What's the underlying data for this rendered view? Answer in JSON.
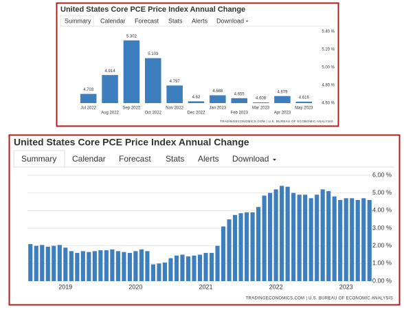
{
  "chart_data": [
    {
      "type": "bar",
      "title": "United States Core PCE Price Index Annual Change",
      "tabs": [
        "Summary",
        "Calendar",
        "Forecast",
        "Stats",
        "Alerts",
        "Download"
      ],
      "source": "TRADINGECONOMICS.COM | U.S. BUREAU OF ECONOMIC ANALYSIS",
      "categories": [
        "Jul 2022",
        "Aug 2022",
        "Sep 2022",
        "Oct 2022",
        "Nov 2022",
        "Dec 2022",
        "Jan 2023",
        "Feb 2023",
        "Mar 2023",
        "Apr 2023",
        "May 2023"
      ],
      "values": [
        4.703,
        4.914,
        5.302,
        5.103,
        4.797,
        4.62,
        4.688,
        4.655,
        4.608,
        4.679,
        4.616
      ],
      "color": "#3d7ebf",
      "ylim": [
        4.6,
        5.4
      ],
      "yticks": [
        {
          "value": 4.6,
          "label": "4.60 %"
        },
        {
          "value": 4.8,
          "label": "4.80 %"
        },
        {
          "value": 5.0,
          "label": "5.00 %"
        },
        {
          "value": 5.2,
          "label": "5.20 %"
        },
        {
          "value": 5.4,
          "label": "5.40 %"
        }
      ],
      "grid": false
    },
    {
      "type": "bar",
      "title": "United States Core PCE Price Index Annual Change",
      "tabs": [
        "Summary",
        "Calendar",
        "Forecast",
        "Stats",
        "Alerts",
        "Download"
      ],
      "source": "TRADINGECONOMICS.COM | U.S. BUREAU OF ECONOMIC ANALYSIS",
      "categories": [
        null,
        null,
        null,
        null,
        null,
        null,
        "2019",
        null,
        null,
        null,
        null,
        null,
        null,
        null,
        null,
        null,
        null,
        null,
        "2020",
        null,
        null,
        null,
        null,
        null,
        null,
        null,
        null,
        null,
        null,
        null,
        "2021",
        null,
        null,
        null,
        null,
        null,
        null,
        null,
        null,
        null,
        null,
        null,
        "2022",
        null,
        null,
        null,
        null,
        null,
        null,
        null,
        null,
        null,
        null,
        null,
        "2023",
        null,
        null,
        null,
        null
      ],
      "values": [
        2.1,
        2.0,
        2.05,
        1.95,
        2.0,
        2.05,
        1.9,
        1.7,
        1.6,
        1.7,
        1.65,
        1.7,
        1.75,
        1.75,
        1.8,
        1.7,
        1.65,
        1.6,
        1.7,
        1.8,
        1.7,
        0.95,
        1.0,
        1.05,
        1.3,
        1.45,
        1.5,
        1.4,
        1.45,
        1.5,
        1.6,
        1.6,
        2.0,
        3.1,
        3.5,
        3.75,
        3.85,
        3.9,
        3.9,
        4.2,
        4.85,
        5.0,
        5.2,
        5.4,
        5.35,
        5.0,
        4.9,
        4.9,
        4.7,
        4.9,
        5.2,
        5.1,
        4.8,
        4.6,
        4.7,
        4.7,
        4.6,
        4.7,
        4.6
      ],
      "color": "#3d7ebf",
      "ylim": [
        0,
        6
      ],
      "yticks": [
        {
          "value": 0,
          "label": "0.00 %"
        },
        {
          "value": 1,
          "label": "1.00 %"
        },
        {
          "value": 2,
          "label": "2.00 %"
        },
        {
          "value": 3,
          "label": "3.00 %"
        },
        {
          "value": 4,
          "label": "4.00 %"
        },
        {
          "value": 5,
          "label": "5.00 %"
        },
        {
          "value": 6,
          "label": "6.00 %"
        }
      ],
      "grid": true
    }
  ]
}
